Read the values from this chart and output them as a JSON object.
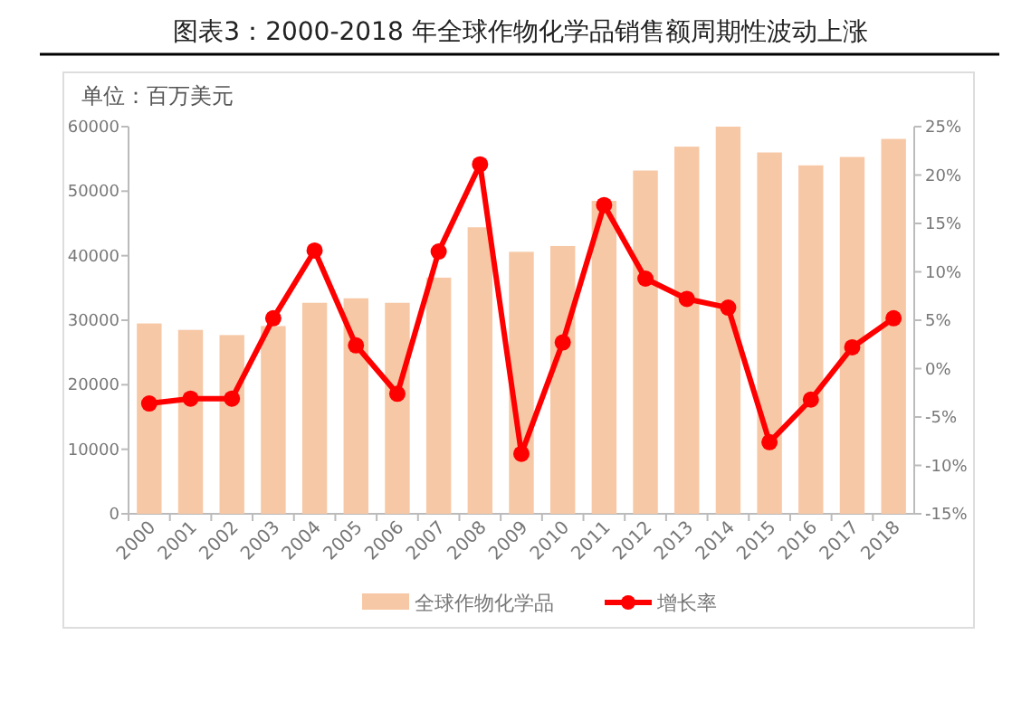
{
  "chart_data": {
    "type": "bar",
    "title": "图表3：2000-2018 年全球作物化学品销售额周期性波动上涨",
    "ylabel": "单位：百万美元",
    "categories": [
      "2000",
      "2001",
      "2002",
      "2003",
      "2004",
      "2005",
      "2006",
      "2007",
      "2008",
      "2009",
      "2010",
      "2011",
      "2012",
      "2013",
      "2014",
      "2015",
      "2016",
      "2017",
      "2018"
    ],
    "series": [
      {
        "name": "全球作物化学品",
        "color": "#f7c8a6",
        "values": [
          29500,
          28500,
          27700,
          29100,
          32700,
          33400,
          32700,
          36600,
          44400,
          40600,
          41500,
          48500,
          53200,
          56900,
          60000,
          56000,
          54000,
          55300,
          58100
        ]
      },
      {
        "name": "增长率",
        "type": "line",
        "axis": "y2",
        "color": "#ff0000",
        "marker": "circle",
        "values": [
          -3.6,
          -3.1,
          -3.1,
          5.2,
          12.2,
          2.4,
          -2.6,
          12.1,
          21.1,
          -8.8,
          2.7,
          16.9,
          9.3,
          7.2,
          6.3,
          -7.6,
          -3.2,
          2.2,
          5.2
        ]
      }
    ],
    "ylim": [
      0,
      60000
    ],
    "yticks": [
      0,
      10000,
      20000,
      30000,
      40000,
      50000,
      60000
    ],
    "y2lim": [
      -15,
      25
    ],
    "y2ticks": [
      {
        "value": -15,
        "label": "-15%"
      },
      {
        "value": -10,
        "label": "-10%"
      },
      {
        "value": -5,
        "label": "-5%"
      },
      {
        "value": 0,
        "label": "0%"
      },
      {
        "value": 5,
        "label": "5%"
      },
      {
        "value": 10,
        "label": "10%"
      },
      {
        "value": 15,
        "label": "15%"
      },
      {
        "value": 20,
        "label": "20%"
      },
      {
        "value": 25,
        "label": "25%"
      }
    ],
    "grid": false,
    "legend": "bottom"
  }
}
